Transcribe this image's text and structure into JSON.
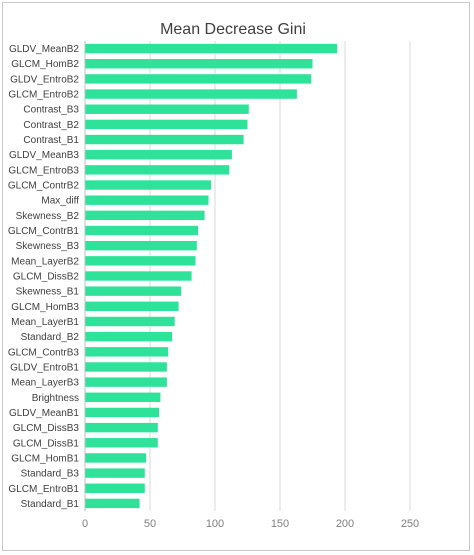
{
  "chart_data": {
    "type": "bar",
    "orientation": "horizontal",
    "title": "Mean Decrease Gini",
    "xlabel": "",
    "ylabel": "",
    "xlim": [
      0,
      250
    ],
    "xticks": [
      0,
      50,
      100,
      150,
      200,
      250
    ],
    "grid": "vertical",
    "color": "#2ee29a",
    "categories": [
      "GLDV_MeanB2",
      "GLCM_HomB2",
      "GLDV_EntroB2",
      "GLCM_EntroB2",
      "Contrast_B3",
      "Contrast_B2",
      "Contrast_B1",
      "GLDV_MeanB3",
      "GLCM_EntroB3",
      "GLCM_ContrB2",
      "Max_diff",
      "Skewness_B2",
      "GLCM_ContrB1",
      "Skewness_B3",
      "Mean_LayerB2",
      "GLCM_DissB2",
      "Skewness_B1",
      "GLCM_HomB3",
      "Mean_LayerB1",
      "Standard_B2",
      "GLCM_ContrB3",
      "GLDV_EntroB1",
      "Mean_LayerB3",
      "Brightness",
      "GLDV_MeanB1",
      "GLCM_DissB3",
      "GLCM_DissB1",
      "GLCM_HomB1",
      "Standard_B3",
      "GLCM_EntroB1",
      "Standard_B1"
    ],
    "values": [
      194,
      175,
      174,
      163,
      126,
      125,
      122,
      113,
      111,
      97,
      95,
      92,
      87,
      86,
      85,
      82,
      74,
      72,
      69,
      67,
      64,
      63,
      63,
      58,
      57,
      56,
      56,
      47,
      46,
      46,
      42
    ]
  }
}
